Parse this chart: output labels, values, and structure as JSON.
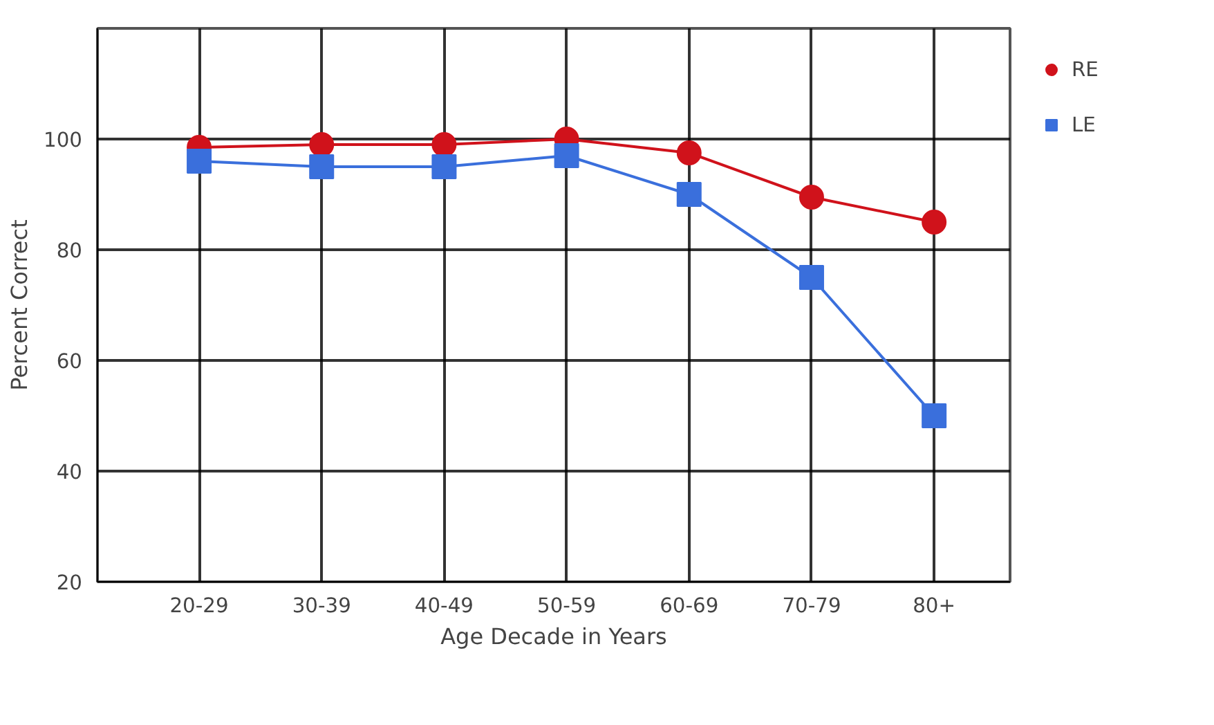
{
  "chart_data": {
    "type": "line",
    "xlabel": "Age Decade in Years",
    "ylabel": "Percent Correct",
    "categories": [
      "20-29",
      "30-39",
      "40-49",
      "50-59",
      "60-69",
      "70-79",
      "80+"
    ],
    "series": [
      {
        "name": "RE",
        "color": "#d0121b",
        "marker": "circle",
        "values": [
          98.5,
          99,
          99,
          100,
          97.5,
          89.5,
          85
        ]
      },
      {
        "name": "LE",
        "color": "#3a6fdc",
        "marker": "square",
        "values": [
          96,
          95,
          95,
          97,
          90,
          75,
          50
        ]
      }
    ],
    "ylim": [
      20,
      120
    ],
    "yticks": [
      20,
      40,
      60,
      80,
      100
    ],
    "grid": true,
    "legend": "right",
    "line_style": "solid"
  }
}
